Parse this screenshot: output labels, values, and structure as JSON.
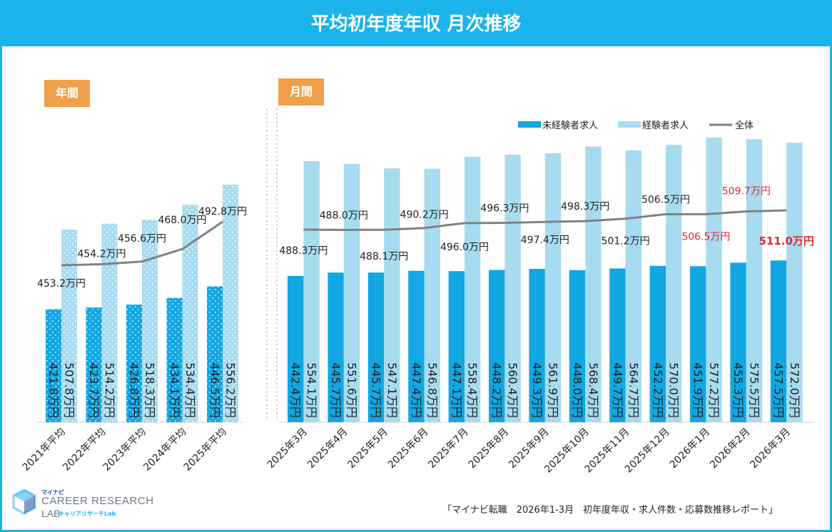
{
  "title": "平均初年度年収 月次推移",
  "badges": {
    "annual": "年間",
    "monthly": "月間"
  },
  "legend": {
    "inexperienced": "未経験者求人",
    "experienced": "経験者求人",
    "overall": "全体"
  },
  "colors": {
    "inexperienced": "#10a7e3",
    "experienced": "#a7dbf0",
    "overall_line": "#808080",
    "highlight_text": "#e8262b",
    "header": "#1ab4ea",
    "badge": "#f0a04b"
  },
  "source": "「マイナビ転職　2026年1-3月　初年度年収・求人件数・応募数推移レポート」",
  "logo": {
    "small": "マイナビ",
    "main": "CAREER RESEARCH",
    "lab": "LAB",
    "kana": "キャリアリサーチLab"
  },
  "chart_data": [
    {
      "type": "bar",
      "panel": "annual",
      "categories": [
        "2021年平均",
        "2022年平均",
        "2023年平均",
        "2024年平均",
        "2025年平均"
      ],
      "series": [
        {
          "name": "未経験者求人",
          "values": [
            421.8,
            423.7,
            426.8,
            434.1,
            446.5
          ],
          "labels": [
            "421.8万円",
            "423.7万円",
            "426.8万円",
            "434.1万円",
            "446.5万円"
          ]
        },
        {
          "name": "経験者求人",
          "values": [
            507.8,
            514.2,
            518.3,
            534.4,
            556.2
          ],
          "labels": [
            "507.8万円",
            "514.2万円",
            "518.3万円",
            "534.4万円",
            "556.2万円"
          ]
        },
        {
          "name": "全体",
          "type": "line",
          "values": [
            453.2,
            454.2,
            456.6,
            468.0,
            492.8
          ],
          "labels": [
            "453.2万円",
            "454.2万円",
            "456.6万円",
            "468.0万円",
            "492.8万円"
          ]
        }
      ]
    },
    {
      "type": "bar",
      "panel": "monthly",
      "categories": [
        "2025年3月",
        "2025年4月",
        "2025年5月",
        "2025年6月",
        "2025年7月",
        "2025年8月",
        "2025年9月",
        "2025年10月",
        "2025年11月",
        "2025年12月",
        "2026年1月",
        "2026年2月",
        "2026年3月"
      ],
      "series": [
        {
          "name": "未経験者求人",
          "values": [
            442.4,
            445.7,
            445.7,
            447.4,
            447.1,
            448.2,
            449.3,
            448.0,
            449.7,
            452.2,
            451.9,
            455.3,
            457.5
          ],
          "labels": [
            "442.4万円",
            "445.7万円",
            "445.7万円",
            "447.4万円",
            "447.1万円",
            "448.2万円",
            "449.3万円",
            "448.0万円",
            "449.7万円",
            "452.2万円",
            "451.9万円",
            "455.3万円",
            "457.5万円"
          ]
        },
        {
          "name": "経験者求人",
          "values": [
            554.1,
            551.6,
            547.1,
            546.8,
            558.4,
            560.4,
            561.9,
            568.4,
            564.7,
            570.0,
            577.2,
            575.5,
            572.0
          ],
          "labels": [
            "554.1万円",
            "551.6万円",
            "547.1万円",
            "546.8万円",
            "558.4万円",
            "560.4万円",
            "561.9万円",
            "568.4万円",
            "564.7万円",
            "570.0万円",
            "577.2万円",
            "575.5万円",
            "572.0万円"
          ]
        },
        {
          "name": "全体",
          "type": "line",
          "values": [
            488.3,
            488.0,
            488.1,
            490.2,
            496.0,
            496.3,
            497.4,
            498.3,
            501.2,
            506.5,
            506.5,
            509.7,
            511.0
          ],
          "labels": [
            "488.3万円",
            "488.0万円",
            "488.1万円",
            "490.2万円",
            "496.0万円",
            "496.3万円",
            "497.4万円",
            "498.3万円",
            "501.2万円",
            "506.5万円",
            "506.5万円",
            "509.7万円",
            "511.0万円"
          ]
        }
      ],
      "highlighted_points": [
        10,
        11,
        12
      ]
    }
  ]
}
